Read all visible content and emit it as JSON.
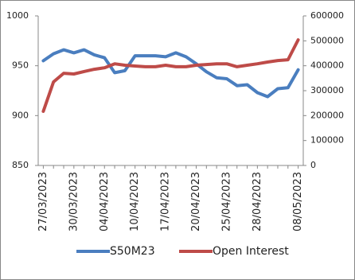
{
  "chart_data": {
    "type": "line",
    "categories": [
      "27/03/2023",
      null,
      null,
      "30/03/2023",
      null,
      null,
      "04/04/2023",
      null,
      null,
      "10/04/2023",
      null,
      null,
      "17/04/2023",
      null,
      null,
      "20/04/2023",
      null,
      null,
      "25/04/2023",
      null,
      null,
      "28/04/2023",
      null,
      null,
      null,
      "08/05/2023"
    ],
    "series": [
      {
        "name": "S50M23",
        "color": "#4a7ebf",
        "values": [
          955,
          962,
          966,
          963,
          966,
          961,
          958,
          943,
          945,
          960,
          960,
          960,
          959,
          963,
          959,
          952,
          944,
          938,
          937,
          930,
          931,
          923,
          919,
          927,
          928,
          946
        ]
      },
      {
        "name": "Open Interest",
        "color": "#be4b48",
        "axis": "y2",
        "values": [
          217000,
          335000,
          370000,
          367000,
          377000,
          386000,
          392000,
          408000,
          402000,
          399000,
          396000,
          396000,
          402000,
          396000,
          396000,
          402000,
          405000,
          408000,
          408000,
          396000,
          402000,
          408000,
          415000,
          421000,
          424000,
          504000
        ]
      }
    ],
    "ylim": [
      850,
      1000
    ],
    "yticks": [
      850,
      900,
      950,
      1000
    ],
    "y2lim": [
      0,
      600000
    ],
    "y2ticks": [
      0,
      100000,
      200000,
      300000,
      400000,
      500000,
      600000
    ]
  }
}
